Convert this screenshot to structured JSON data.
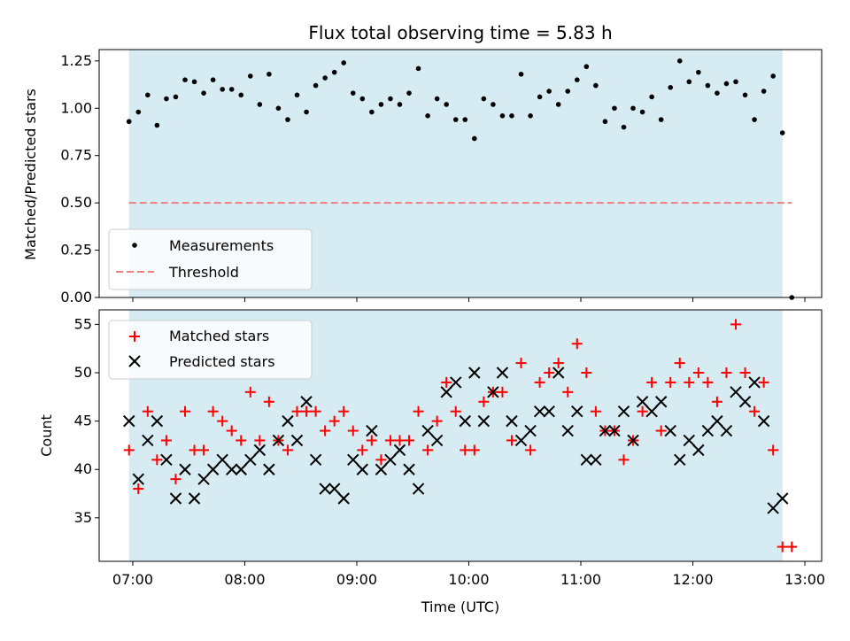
{
  "chart_data": [
    {
      "type": "scatter",
      "title": "Flux total observing time = 5.83 h",
      "xlabel": "",
      "ylabel": "Matched/Predicted stars",
      "xlim": [
        "06:42",
        "13:09"
      ],
      "ylim": [
        0,
        1.31
      ],
      "yticks": [
        "0.00",
        "0.25",
        "0.50",
        "0.75",
        "1.00",
        "1.25"
      ],
      "shaded_interval": [
        "06:58",
        "12:48"
      ],
      "shade_color": "#add8e6",
      "legend_position": "lower-left",
      "series": [
        {
          "name": "Measurements",
          "marker": "dot",
          "color": "#000000",
          "times": [
            "06:58",
            "07:03",
            "07:08",
            "07:13",
            "07:18",
            "07:23",
            "07:28",
            "07:33",
            "07:38",
            "07:43",
            "07:48",
            "07:53",
            "07:58",
            "08:03",
            "08:08",
            "08:13",
            "08:18",
            "08:23",
            "08:28",
            "08:33",
            "08:38",
            "08:43",
            "08:48",
            "08:53",
            "08:58",
            "09:03",
            "09:08",
            "09:13",
            "09:18",
            "09:23",
            "09:28",
            "09:33",
            "09:38",
            "09:43",
            "09:48",
            "09:53",
            "09:58",
            "10:03",
            "10:08",
            "10:13",
            "10:18",
            "10:23",
            "10:28",
            "10:33",
            "10:38",
            "10:43",
            "10:48",
            "10:53",
            "10:58",
            "11:03",
            "11:08",
            "11:13",
            "11:18",
            "11:23",
            "11:28",
            "11:33",
            "11:38",
            "11:43",
            "11:48",
            "11:53",
            "11:58",
            "12:03",
            "12:08",
            "12:13",
            "12:18",
            "12:23",
            "12:28",
            "12:33",
            "12:38",
            "12:43",
            "12:48",
            "12:53"
          ],
          "values": [
            0.93,
            0.98,
            1.07,
            0.91,
            1.05,
            1.06,
            1.15,
            1.14,
            1.08,
            1.15,
            1.1,
            1.1,
            1.07,
            1.17,
            1.02,
            1.18,
            1.0,
            0.94,
            1.07,
            0.98,
            1.12,
            1.16,
            1.19,
            1.24,
            1.08,
            1.05,
            0.98,
            1.02,
            1.05,
            1.02,
            1.08,
            1.21,
            0.96,
            1.05,
            1.02,
            0.94,
            0.94,
            0.84,
            1.05,
            1.02,
            0.96,
            0.96,
            1.18,
            0.96,
            1.06,
            1.09,
            1.02,
            1.09,
            1.15,
            1.22,
            1.12,
            0.93,
            1.0,
            0.9,
            1.0,
            0.98,
            1.06,
            0.94,
            1.11,
            1.25,
            1.14,
            1.19,
            1.12,
            1.08,
            1.13,
            1.14,
            1.07,
            0.94,
            1.09,
            1.17,
            0.87,
            0.0
          ]
        },
        {
          "name": "Threshold",
          "style": "dashed",
          "color": "#f08080",
          "times": [
            "06:58",
            "12:53"
          ],
          "values": [
            0.5,
            0.5
          ]
        }
      ]
    },
    {
      "type": "scatter",
      "title": "",
      "xlabel": "Time (UTC)",
      "ylabel": "Count",
      "xlim": [
        "06:42",
        "13:09"
      ],
      "ylim": [
        30.5,
        56.5
      ],
      "yticks": [
        "35",
        "40",
        "45",
        "50",
        "55"
      ],
      "xticks": [
        "07:00",
        "08:00",
        "09:00",
        "10:00",
        "11:00",
        "12:00",
        "13:00"
      ],
      "shaded_interval": [
        "06:58",
        "12:48"
      ],
      "shade_color": "#add8e6",
      "legend_position": "upper-left",
      "series": [
        {
          "name": "Matched stars",
          "marker": "plus",
          "color": "#ff0000",
          "times": [
            "06:58",
            "07:03",
            "07:08",
            "07:13",
            "07:18",
            "07:23",
            "07:28",
            "07:33",
            "07:38",
            "07:43",
            "07:48",
            "07:53",
            "07:58",
            "08:03",
            "08:08",
            "08:13",
            "08:18",
            "08:23",
            "08:28",
            "08:33",
            "08:38",
            "08:43",
            "08:48",
            "08:53",
            "08:58",
            "09:03",
            "09:08",
            "09:13",
            "09:18",
            "09:23",
            "09:28",
            "09:33",
            "09:38",
            "09:43",
            "09:48",
            "09:53",
            "09:58",
            "10:03",
            "10:08",
            "10:13",
            "10:18",
            "10:23",
            "10:28",
            "10:33",
            "10:38",
            "10:43",
            "10:48",
            "10:53",
            "10:58",
            "11:03",
            "11:08",
            "11:13",
            "11:18",
            "11:23",
            "11:28",
            "11:33",
            "11:38",
            "11:43",
            "11:48",
            "11:53",
            "11:58",
            "12:03",
            "12:08",
            "12:13",
            "12:18",
            "12:23",
            "12:28",
            "12:33",
            "12:38",
            "12:43",
            "12:48",
            "12:53"
          ],
          "values": [
            42,
            38,
            46,
            41,
            43,
            39,
            46,
            42,
            42,
            46,
            45,
            44,
            43,
            48,
            43,
            47,
            43,
            42,
            46,
            46,
            46,
            44,
            45,
            46,
            44,
            42,
            43,
            41,
            43,
            43,
            43,
            46,
            42,
            45,
            49,
            46,
            42,
            42,
            47,
            48,
            48,
            43,
            51,
            42,
            49,
            50,
            51,
            48,
            53,
            50,
            46,
            44,
            44,
            41,
            43,
            46,
            49,
            44,
            49,
            51,
            49,
            50,
            49,
            47,
            50,
            55,
            50,
            46,
            49,
            42,
            32,
            32
          ]
        },
        {
          "name": "Predicted stars",
          "marker": "x",
          "color": "#000000",
          "times": [
            "06:58",
            "07:03",
            "07:08",
            "07:13",
            "07:18",
            "07:23",
            "07:28",
            "07:33",
            "07:38",
            "07:43",
            "07:48",
            "07:53",
            "07:58",
            "08:03",
            "08:08",
            "08:13",
            "08:18",
            "08:23",
            "08:28",
            "08:33",
            "08:38",
            "08:43",
            "08:48",
            "08:53",
            "08:58",
            "09:03",
            "09:08",
            "09:13",
            "09:18",
            "09:23",
            "09:28",
            "09:33",
            "09:38",
            "09:43",
            "09:48",
            "09:53",
            "09:58",
            "10:03",
            "10:08",
            "10:13",
            "10:18",
            "10:23",
            "10:28",
            "10:33",
            "10:38",
            "10:43",
            "10:48",
            "10:53",
            "10:58",
            "11:03",
            "11:08",
            "11:13",
            "11:18",
            "11:23",
            "11:28",
            "11:33",
            "11:38",
            "11:43",
            "11:48",
            "11:53",
            "11:58",
            "12:03",
            "12:08",
            "12:13",
            "12:18",
            "12:23",
            "12:28",
            "12:33",
            "12:38",
            "12:43",
            "12:48"
          ],
          "values": [
            45,
            39,
            43,
            45,
            41,
            37,
            40,
            37,
            39,
            40,
            41,
            40,
            40,
            41,
            42,
            40,
            43,
            45,
            43,
            47,
            41,
            38,
            38,
            37,
            41,
            40,
            44,
            40,
            41,
            42,
            40,
            38,
            44,
            43,
            48,
            49,
            45,
            50,
            45,
            48,
            50,
            45,
            43,
            44,
            46,
            46,
            50,
            44,
            46,
            41,
            41,
            44,
            44,
            46,
            43,
            47,
            46,
            47,
            44,
            41,
            43,
            42,
            44,
            45,
            44,
            48,
            47,
            49,
            45,
            36,
            37
          ]
        }
      ]
    }
  ]
}
